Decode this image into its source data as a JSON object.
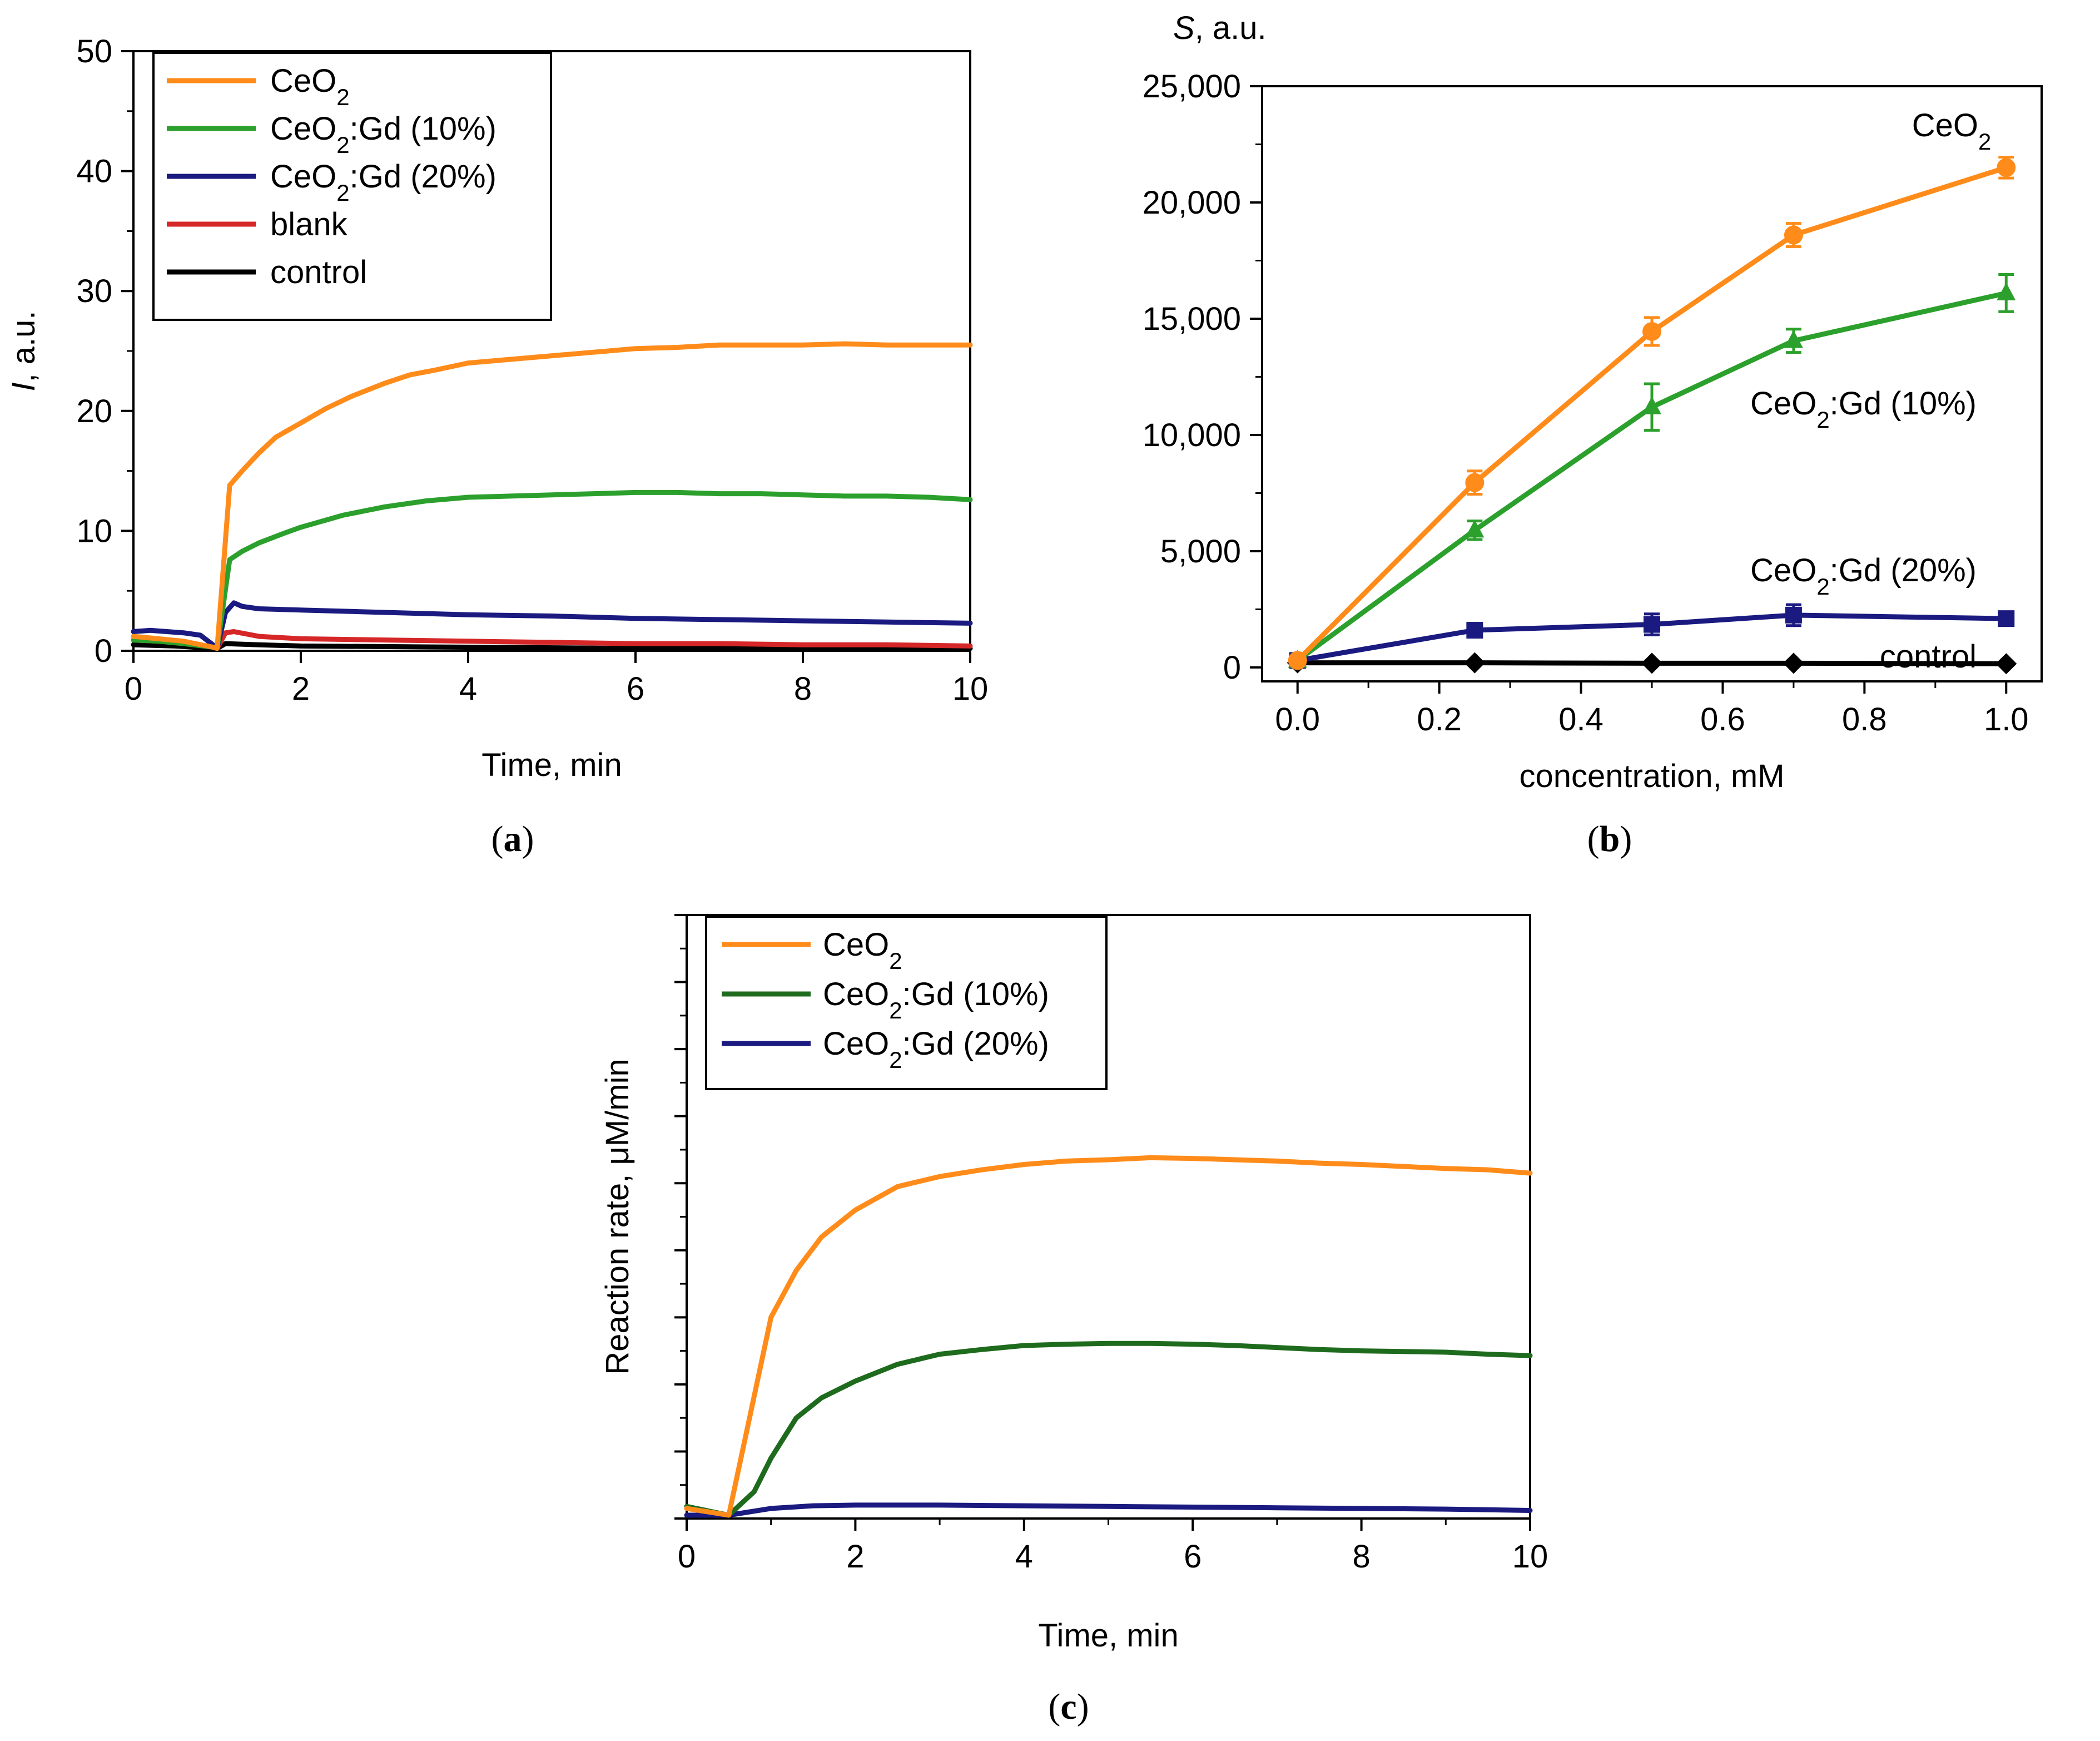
{
  "panels": [
    {
      "id": "a",
      "label_open": "(",
      "label_letter": "a",
      "label_close": ")"
    },
    {
      "id": "b",
      "label_open": "(",
      "label_letter": "b",
      "label_close": ")"
    },
    {
      "id": "c",
      "label_open": "(",
      "label_letter": "c",
      "label_close": ")"
    }
  ],
  "chart_data": [
    {
      "id": "a",
      "type": "line",
      "xlabel": "Time, min",
      "ylabel_italic": "I",
      "ylabel_rest": ", a.u.",
      "xlim": [
        0,
        10
      ],
      "ylim": [
        0,
        50
      ],
      "xticks": [
        0,
        2,
        4,
        6,
        8,
        10
      ],
      "yticks": [
        0,
        10,
        20,
        30,
        40,
        50
      ],
      "legend_position": "top-left",
      "series": [
        {
          "name": "CeO2",
          "legend_base": "CeO",
          "legend_sub": "2",
          "legend_suffix": "",
          "color": "#ff8c1a",
          "x": [
            0,
            0.3,
            0.6,
            0.95,
            1.0,
            1.15,
            1.3,
            1.5,
            1.7,
            2.0,
            2.3,
            2.6,
            3.0,
            3.3,
            3.6,
            4.0,
            4.5,
            5.0,
            5.5,
            6.0,
            6.5,
            7.0,
            7.5,
            8.0,
            8.5,
            9.0,
            9.5,
            10.0
          ],
          "y": [
            1.2,
            1.0,
            0.8,
            0.3,
            0.2,
            13.8,
            15.0,
            16.5,
            17.8,
            19.0,
            20.2,
            21.2,
            22.3,
            23.0,
            23.4,
            24.0,
            24.3,
            24.6,
            24.9,
            25.2,
            25.3,
            25.5,
            25.5,
            25.5,
            25.6,
            25.5,
            25.5,
            25.5
          ]
        },
        {
          "name": "CeO2:Gd (10%)",
          "legend_base": "CeO",
          "legend_sub": "2",
          "legend_suffix": ":Gd (10%)",
          "color": "#2ca02c",
          "x": [
            0,
            0.3,
            0.6,
            0.95,
            1.0,
            1.15,
            1.3,
            1.5,
            1.8,
            2.0,
            2.5,
            3.0,
            3.5,
            4.0,
            4.5,
            5.0,
            5.5,
            6.0,
            6.5,
            7.0,
            7.5,
            8.0,
            8.5,
            9.0,
            9.5,
            10.0
          ],
          "y": [
            0.9,
            0.8,
            0.6,
            0.3,
            0.2,
            7.6,
            8.3,
            9.0,
            9.8,
            10.3,
            11.3,
            12.0,
            12.5,
            12.8,
            12.9,
            13.0,
            13.1,
            13.2,
            13.2,
            13.1,
            13.1,
            13.0,
            12.9,
            12.9,
            12.8,
            12.6
          ]
        },
        {
          "name": "CeO2:Gd (20%)",
          "legend_base": "CeO",
          "legend_sub": "2",
          "legend_suffix": ":Gd (20%)",
          "color": "#1a1a80",
          "x": [
            0,
            0.2,
            0.4,
            0.6,
            0.8,
            0.95,
            1.0,
            1.1,
            1.2,
            1.3,
            1.5,
            2.0,
            3.0,
            4.0,
            5.0,
            6.0,
            7.0,
            8.0,
            9.0,
            10.0
          ],
          "y": [
            1.6,
            1.7,
            1.6,
            1.5,
            1.3,
            0.5,
            0.2,
            3.2,
            4.0,
            3.7,
            3.5,
            3.4,
            3.2,
            3.0,
            2.9,
            2.7,
            2.6,
            2.5,
            2.4,
            2.3
          ]
        },
        {
          "name": "blank",
          "legend_base": "blank",
          "legend_sub": "",
          "legend_suffix": "",
          "color": "#d62728",
          "x": [
            0,
            0.3,
            0.6,
            0.95,
            1.0,
            1.1,
            1.2,
            1.5,
            2.0,
            3.0,
            4.0,
            5.0,
            6.0,
            7.0,
            8.0,
            9.0,
            10.0
          ],
          "y": [
            0.9,
            0.8,
            0.7,
            0.3,
            0.2,
            1.5,
            1.6,
            1.2,
            1.0,
            0.9,
            0.8,
            0.7,
            0.6,
            0.6,
            0.5,
            0.5,
            0.4
          ]
        },
        {
          "name": "control",
          "legend_base": "control",
          "legend_sub": "",
          "legend_suffix": "",
          "color": "#000000",
          "x": [
            0,
            0.5,
            0.95,
            1.0,
            1.1,
            1.5,
            2.0,
            4.0,
            6.0,
            8.0,
            10.0
          ],
          "y": [
            0.5,
            0.4,
            0.2,
            0.2,
            0.6,
            0.5,
            0.4,
            0.3,
            0.2,
            0.2,
            0.2
          ]
        }
      ]
    },
    {
      "id": "b",
      "type": "line",
      "xlabel": "concentration, mM",
      "ylabel_italic": "S",
      "ylabel_rest": ", a.u.",
      "xlim": [
        -0.05,
        1.05
      ],
      "ylim": [
        -600,
        25000
      ],
      "xticks": [
        0.0,
        0.2,
        0.4,
        0.6,
        0.8,
        1.0
      ],
      "xtick_labels": [
        "0.0",
        "0.2",
        "0.4",
        "0.6",
        "0.8",
        "1.0"
      ],
      "yticks": [
        0,
        5000,
        10000,
        15000,
        20000,
        25000
      ],
      "ytick_labels": [
        "0",
        "5,000",
        "10,000",
        "15,000",
        "20,000",
        "25,000"
      ],
      "series": [
        {
          "name": "CeO2",
          "label_base": "CeO",
          "label_sub": "2",
          "label_suffix": "",
          "color": "#ff8c1a",
          "marker": "circle",
          "x": [
            0,
            0.25,
            0.5,
            0.7,
            1.0
          ],
          "y": [
            300,
            7950,
            14450,
            18600,
            21500
          ],
          "err": [
            150,
            500,
            600,
            500,
            450
          ]
        },
        {
          "name": "CeO2:Gd (10%)",
          "label_base": "CeO",
          "label_sub": "2",
          "label_suffix": ":Gd (10%)",
          "color": "#2ca02c",
          "marker": "triangle",
          "x": [
            0,
            0.25,
            0.5,
            0.7,
            1.0
          ],
          "y": [
            300,
            5900,
            11200,
            14050,
            16100
          ],
          "err": [
            150,
            400,
            1000,
            500,
            800
          ]
        },
        {
          "name": "CeO2:Gd (20%)",
          "label_base": "CeO",
          "label_sub": "2",
          "label_suffix": ":Gd (20%)",
          "color": "#1a1a80",
          "marker": "square",
          "x": [
            0,
            0.25,
            0.5,
            0.7,
            1.0
          ],
          "y": [
            300,
            1600,
            1850,
            2250,
            2100
          ],
          "err": [
            100,
            250,
            450,
            450,
            250
          ]
        },
        {
          "name": "control",
          "label_base": "control",
          "label_sub": "",
          "label_suffix": "",
          "color": "#000000",
          "marker": "diamond",
          "x": [
            0,
            0.25,
            0.5,
            0.7,
            1.0
          ],
          "y": [
            200,
            200,
            180,
            180,
            160
          ],
          "err": [
            0,
            0,
            0,
            0,
            0
          ]
        }
      ]
    },
    {
      "id": "c",
      "type": "line",
      "xlabel": "Time, min",
      "ylabel": "Reaction rate, μM/min",
      "xlim": [
        0,
        10
      ],
      "ylim": [
        0,
        9
      ],
      "xticks": [
        0,
        2,
        4,
        6,
        8,
        10
      ],
      "legend_position": "top-left",
      "series": [
        {
          "name": "CeO2",
          "legend_base": "CeO",
          "legend_sub": "2",
          "legend_suffix": "",
          "color": "#ff8c1a",
          "x": [
            0,
            0.5,
            1.0,
            1.3,
            1.6,
            2.0,
            2.5,
            3.0,
            3.5,
            4.0,
            4.5,
            5.0,
            5.5,
            6.0,
            6.5,
            7.0,
            7.5,
            8.0,
            8.5,
            9.0,
            9.5,
            10.0
          ],
          "y": [
            0.15,
            0.05,
            3.0,
            3.7,
            4.2,
            4.6,
            4.95,
            5.1,
            5.2,
            5.28,
            5.33,
            5.35,
            5.38,
            5.37,
            5.35,
            5.33,
            5.3,
            5.28,
            5.25,
            5.22,
            5.2,
            5.15
          ]
        },
        {
          "name": "CeO2:Gd (10%)",
          "legend_base": "CeO",
          "legend_sub": "2",
          "legend_suffix": ":Gd (10%)",
          "color": "#1e6b1e",
          "x": [
            0,
            0.5,
            0.8,
            1.0,
            1.3,
            1.6,
            2.0,
            2.5,
            3.0,
            3.5,
            4.0,
            4.5,
            5.0,
            5.5,
            6.0,
            6.5,
            7.0,
            7.5,
            8.0,
            8.5,
            9.0,
            9.5,
            10.0
          ],
          "y": [
            0.18,
            0.05,
            0.4,
            0.9,
            1.5,
            1.8,
            2.05,
            2.3,
            2.45,
            2.52,
            2.58,
            2.6,
            2.61,
            2.61,
            2.6,
            2.58,
            2.55,
            2.52,
            2.5,
            2.49,
            2.48,
            2.45,
            2.43
          ]
        },
        {
          "name": "CeO2:Gd (20%)",
          "legend_base": "CeO",
          "legend_sub": "2",
          "legend_suffix": ":Gd (20%)",
          "color": "#1a1a80",
          "x": [
            0,
            0.5,
            1.0,
            1.5,
            2.0,
            3.0,
            4.0,
            5.0,
            6.0,
            7.0,
            8.0,
            9.0,
            10.0
          ],
          "y": [
            0.05,
            0.05,
            0.15,
            0.19,
            0.2,
            0.2,
            0.19,
            0.18,
            0.17,
            0.16,
            0.15,
            0.14,
            0.12
          ]
        }
      ]
    }
  ]
}
